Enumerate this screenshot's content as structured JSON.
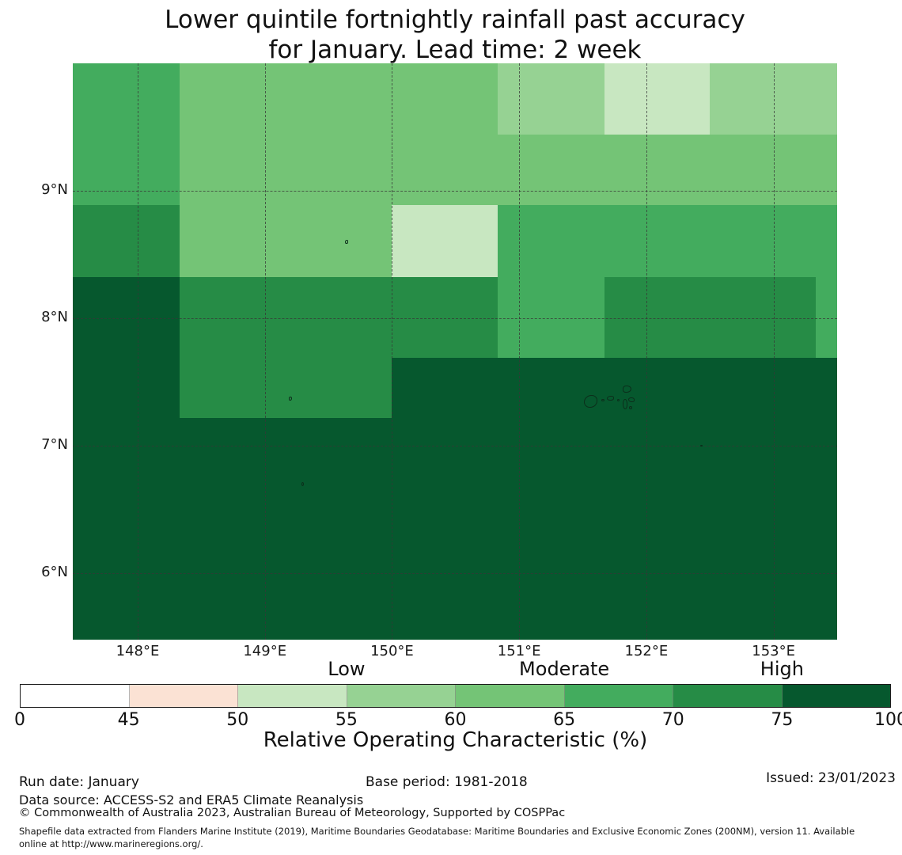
{
  "title": {
    "line1": "Lower quintile fortnightly rainfall past accuracy",
    "line2": "for January. Lead time: 2 week"
  },
  "chart_data": {
    "type": "heatmap",
    "title": "Lower quintile fortnightly rainfall past accuracy for January. Lead time: 2 week",
    "subtitle": "",
    "xlabel": "",
    "ylabel": "",
    "legend_position": "bottom",
    "grid": "dashed graticule",
    "lon_range": [
      147.49,
      153.5
    ],
    "lat_range": [
      5.478,
      10.0
    ],
    "x_ticks": [
      {
        "lon": 148,
        "label": "148°E"
      },
      {
        "lon": 149,
        "label": "149°E"
      },
      {
        "lon": 150,
        "label": "150°E"
      },
      {
        "lon": 151,
        "label": "151°E"
      },
      {
        "lon": 152,
        "label": "152°E"
      },
      {
        "lon": 153,
        "label": "153°E"
      }
    ],
    "y_ticks": [
      {
        "lat": 9,
        "label": "9°N"
      },
      {
        "lat": 8,
        "label": "8°N"
      },
      {
        "lat": 7,
        "label": "7°N"
      },
      {
        "lat": 6,
        "label": "6°N"
      }
    ],
    "col_edges_lon": [
      147.49,
      148.33,
      149.17,
      150.0,
      150.83,
      151.67,
      152.5,
      153.33,
      153.5
    ],
    "row_edges_lat": [
      10.0,
      9.44,
      8.89,
      8.32,
      7.69,
      7.22,
      6.68,
      6.12,
      5.57,
      5.478
    ],
    "bins": [
      {
        "range": "0-45",
        "color": "#ffffff"
      },
      {
        "range": "45-50",
        "color": "#fbe2d4"
      },
      {
        "range": "50-55",
        "color": "#c8e7c1"
      },
      {
        "range": "55-60",
        "color": "#96d293"
      },
      {
        "range": "60-65",
        "color": "#74c476"
      },
      {
        "range": "65-70",
        "color": "#43ac5e"
      },
      {
        "range": "70-75",
        "color": "#268c46"
      },
      {
        "range": "75-100",
        "color": "#06582e"
      }
    ],
    "cells_roc_bin": [
      [
        "65-70",
        "60-65",
        "60-65",
        "60-65",
        "55-60",
        "50-55",
        "55-60",
        "55-60"
      ],
      [
        "65-70",
        "60-65",
        "60-65",
        "60-65",
        "60-65",
        "60-65",
        "60-65",
        "60-65"
      ],
      [
        "70-75",
        "60-65",
        "60-65",
        "50-55",
        "65-70",
        "65-70",
        "65-70",
        "65-70"
      ],
      [
        "75-100",
        "70-75",
        "70-75",
        "70-75",
        "65-70",
        "70-75",
        "70-75",
        "65-70"
      ],
      [
        "75-100",
        "70-75",
        "70-75",
        "75-100",
        "75-100",
        "75-100",
        "75-100",
        "75-100"
      ],
      [
        "75-100",
        "75-100",
        "75-100",
        "75-100",
        "75-100",
        "75-100",
        "75-100",
        "75-100"
      ],
      [
        "75-100",
        "75-100",
        "75-100",
        "75-100",
        "75-100",
        "75-100",
        "75-100",
        "75-100"
      ],
      [
        "75-100",
        "75-100",
        "75-100",
        "75-100",
        "75-100",
        "75-100",
        "75-100",
        "75-100"
      ],
      [
        "75-100",
        "75-100",
        "75-100",
        "75-100",
        "75-100",
        "75-100",
        "75-100",
        "75-100"
      ]
    ],
    "islands": [
      {
        "lon": 151.565,
        "lat": 7.35,
        "w": 17,
        "h": 16,
        "radius": "58% 42% 55% 45%"
      },
      {
        "lon": 151.66,
        "lat": 7.36,
        "w": 4,
        "h": 3,
        "radius": "50%"
      },
      {
        "lon": 151.715,
        "lat": 7.375,
        "w": 9,
        "h": 6,
        "radius": "60% 40% 50% 50%"
      },
      {
        "lon": 151.78,
        "lat": 7.36,
        "w": 3,
        "h": 3,
        "radius": "50%"
      },
      {
        "lon": 151.85,
        "lat": 7.445,
        "w": 11,
        "h": 9,
        "radius": "45% 55% 60% 40%"
      },
      {
        "lon": 151.885,
        "lat": 7.36,
        "w": 8,
        "h": 6,
        "radius": "50% 50% 40% 60%"
      },
      {
        "lon": 151.83,
        "lat": 7.325,
        "w": 6,
        "h": 13,
        "radius": "50% 50% 45% 55%"
      },
      {
        "lon": 151.878,
        "lat": 7.3,
        "w": 4,
        "h": 4,
        "radius": "50%"
      },
      {
        "lon": 149.64,
        "lat": 8.6,
        "w": 4,
        "h": 5,
        "radius": "60% 40% 50% 50%"
      },
      {
        "lon": 149.2,
        "lat": 7.37,
        "w": 4,
        "h": 5,
        "radius": "50% 50% 60% 40%"
      },
      {
        "lon": 149.3,
        "lat": 6.7,
        "w": 3,
        "h": 5,
        "radius": "50%"
      },
      {
        "lon": 152.43,
        "lat": 7.0,
        "w": 3,
        "h": 2,
        "radius": "50%"
      }
    ],
    "gridline_lons": [
      148,
      149,
      150,
      151,
      152,
      153
    ],
    "gridline_lats": [
      9,
      8,
      7,
      6
    ]
  },
  "colorbar": {
    "category_labels": [
      "Low",
      "Moderate",
      "High"
    ],
    "category_tick_values": [
      "55",
      "65",
      "75"
    ],
    "ticks": [
      "0",
      "45",
      "50",
      "55",
      "60",
      "65",
      "70",
      "75",
      "100"
    ],
    "axis_label": "Relative Operating Characteristic (%)"
  },
  "footer": {
    "run_date": "Run date: January",
    "base_period": "Base period: 1981-2018",
    "issued": "Issued: 23/01/2023",
    "data_source": "Data source: ACCESS-S2 and ERA5 Climate Reanalysis",
    "copyright": "© Commonwealth of Australia 2023, Australian Bureau of Meteorology, Supported by COSPPac",
    "shapefile_line1": "Shapefile data extracted from Flanders Marine Institute (2019), Maritime Boundaries Geodatabase: Maritime Boundaries and Exclusive Economic Zones (200NM), version 11. Available",
    "shapefile_line2": "online at http://www.marineregions.org/."
  }
}
